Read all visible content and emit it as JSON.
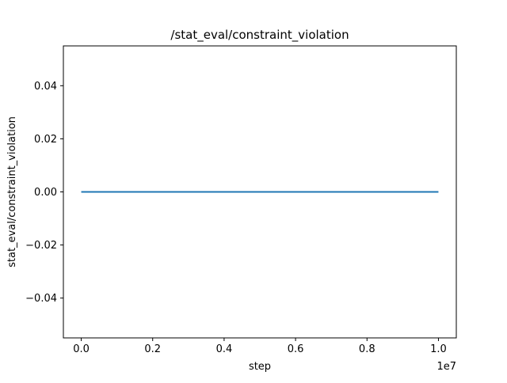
{
  "chart_data": {
    "type": "line",
    "title": "/stat_eval/constraint_violation",
    "xlabel": "step",
    "ylabel": "stat_eval/constraint_violation",
    "x_offset_label": "1e7",
    "xlim": [
      -0.05,
      1.05
    ],
    "ylim": [
      -0.055,
      0.055
    ],
    "x_ticks": [
      0.0,
      0.2,
      0.4,
      0.6,
      0.8,
      1.0
    ],
    "x_tick_labels": [
      "0.0",
      "0.2",
      "0.4",
      "0.6",
      "0.8",
      "1.0"
    ],
    "y_ticks": [
      -0.04,
      -0.02,
      0.0,
      0.02,
      0.04
    ],
    "y_tick_labels": [
      "−0.04",
      "−0.02",
      "0.00",
      "0.02",
      "0.04"
    ],
    "grid": false,
    "series": [
      {
        "color": "#1f77b4",
        "x": [
          0.0,
          1.0
        ],
        "y": [
          0.0,
          0.0
        ]
      }
    ]
  }
}
